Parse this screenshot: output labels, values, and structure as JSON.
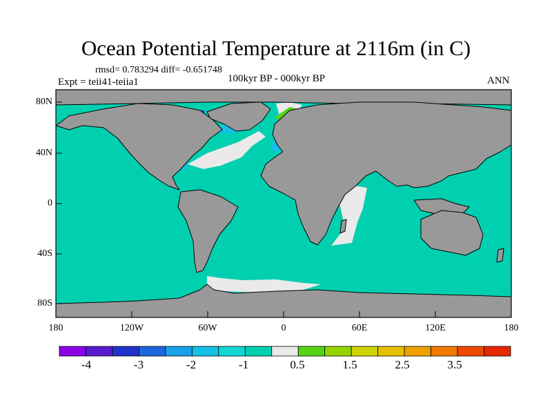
{
  "title": "Ocean Potential Temperature at 2116m (in C)",
  "stats": "rmsd= 0.783294 diff= -0.651748",
  "experiment": "Expt = teii41-teiia1",
  "period": "100kyr BP - 000kyr BP",
  "season": "ANN",
  "lat_labels": [
    "80N",
    "40N",
    "0",
    "40S",
    "80S"
  ],
  "lon_labels": [
    "180",
    "120W",
    "60W",
    "0",
    "60E",
    "120E",
    "180"
  ],
  "colors": {
    "ocean_background": "#00d0b0",
    "land": "#999999",
    "near_zero": "#eaeaea",
    "coastline": "#000000"
  },
  "colorbar": {
    "colors": [
      "#8a00e6",
      "#5a1ad0",
      "#2233cc",
      "#1a66dd",
      "#1aa0e8",
      "#14c0e6",
      "#10d6d6",
      "#00d0b0",
      "#eaeaea",
      "#55d415",
      "#96d400",
      "#cfd400",
      "#e6c000",
      "#eea000",
      "#f07a00",
      "#ee4a00",
      "#e62800"
    ],
    "labels": [
      "-4",
      "-3",
      "-2",
      "-1",
      "0.5",
      "1.5",
      "2.5",
      "3.5"
    ]
  }
}
